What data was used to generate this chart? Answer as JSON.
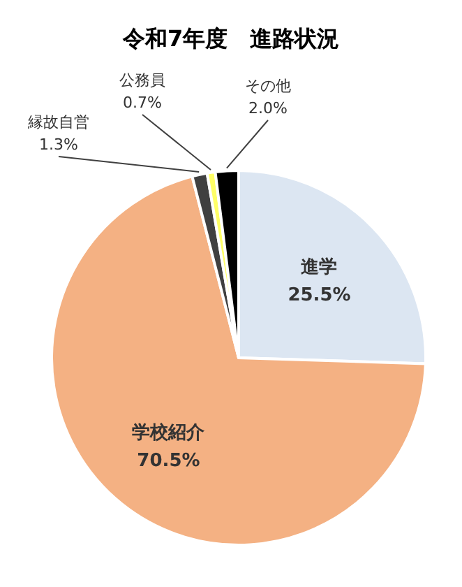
{
  "chart_data": {
    "type": "pie",
    "title": "令和7年度　進路状況",
    "categories": [
      "進学",
      "学校紹介",
      "縁故自営",
      "公務員",
      "その他"
    ],
    "values": [
      25.5,
      70.5,
      1.3,
      0.7,
      2.0
    ],
    "value_labels": [
      "25.5%",
      "70.5%",
      "1.3%",
      "0.7%",
      "2.0%"
    ],
    "colors": [
      "#dce6f2",
      "#f4b183",
      "#404040",
      "#ffff66",
      "#000000"
    ]
  }
}
